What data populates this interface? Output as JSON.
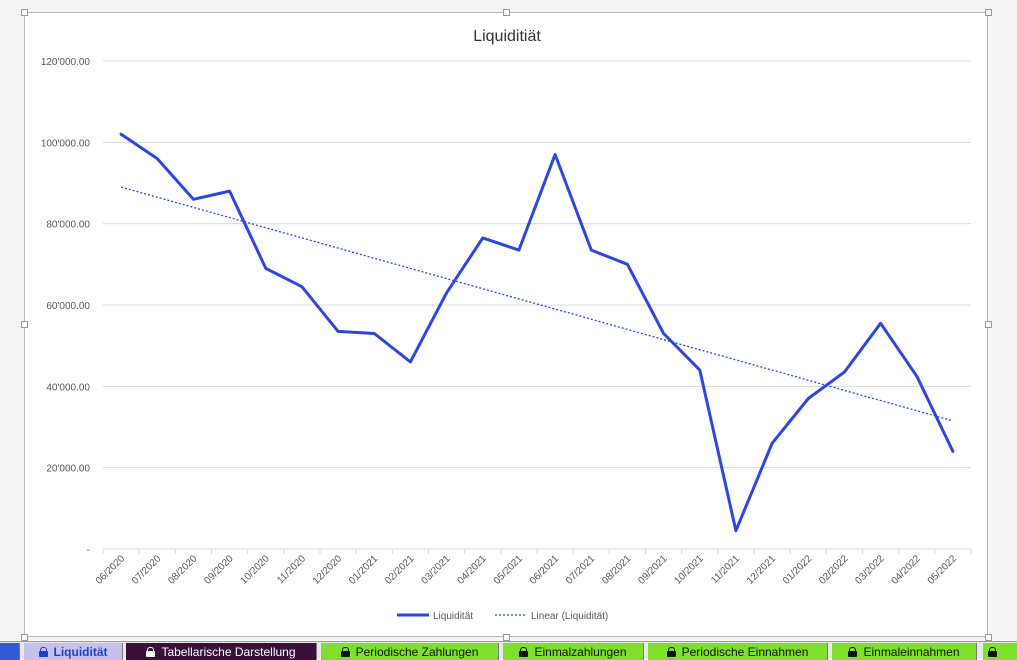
{
  "chart_data": {
    "type": "line",
    "title": "Liquiditiät",
    "categories": [
      "06/2020",
      "07/2020",
      "08/2020",
      "09/2020",
      "10/2020",
      "11/2020",
      "12/2020",
      "01/2021",
      "02/2021",
      "03/2021",
      "04/2021",
      "05/2021",
      "06/2021",
      "07/2021",
      "08/2021",
      "09/2021",
      "10/2021",
      "11/2021",
      "12/2021",
      "01/2022",
      "02/2022",
      "03/2022",
      "04/2022",
      "05/2022"
    ],
    "series": [
      {
        "name": "Liquidität",
        "values": [
          102000,
          96000,
          86000,
          88000,
          69000,
          64500,
          53500,
          53000,
          46000,
          63000,
          76500,
          73500,
          97000,
          73500,
          70000,
          53000,
          44000,
          4500,
          26000,
          37000,
          43500,
          55500,
          42500,
          24000
        ],
        "color": "#2b47de",
        "style": "solid"
      }
    ],
    "trendline": {
      "name": "Linear (Liquidität)",
      "type": "linear",
      "start": 89000,
      "end": 31500,
      "color": "#2b47de",
      "style": "dotted"
    },
    "ylim": [
      0,
      120000
    ],
    "yticks": [
      0,
      20000,
      40000,
      60000,
      80000,
      100000,
      120000
    ],
    "ytick_labels": [
      "-",
      "20'000.00",
      "40'000.00",
      "60'000.00",
      "80'000.00",
      "100'000.00",
      "120'000.00"
    ],
    "grid": true,
    "legend": "bottom-center"
  },
  "tabs": [
    {
      "label": "",
      "bg": "#2f5bd6",
      "fg": "#ffffff",
      "lock": false,
      "active": false
    },
    {
      "label": "Liquidität",
      "bg": "#c7c1ef",
      "fg": "#1a3fd0",
      "lock": true,
      "active": true
    },
    {
      "label": "Tabellarische Darstellung",
      "bg": "#3a0f3a",
      "fg": "#ffffff",
      "lock": true,
      "active": false
    },
    {
      "label": "Periodische Zahlungen",
      "bg": "#7ee02a",
      "fg": "#111111",
      "lock": true,
      "active": false
    },
    {
      "label": "Einmalzahlungen",
      "bg": "#7ee02a",
      "fg": "#111111",
      "lock": true,
      "active": false
    },
    {
      "label": "Periodische Einnahmen",
      "bg": "#7ee02a",
      "fg": "#111111",
      "lock": true,
      "active": false
    },
    {
      "label": "Einmaleinnahmen",
      "bg": "#7ee02a",
      "fg": "#111111",
      "lock": true,
      "active": false
    },
    {
      "label": "",
      "bg": "#7ee02a",
      "fg": "#111111",
      "lock": true,
      "active": false
    }
  ]
}
